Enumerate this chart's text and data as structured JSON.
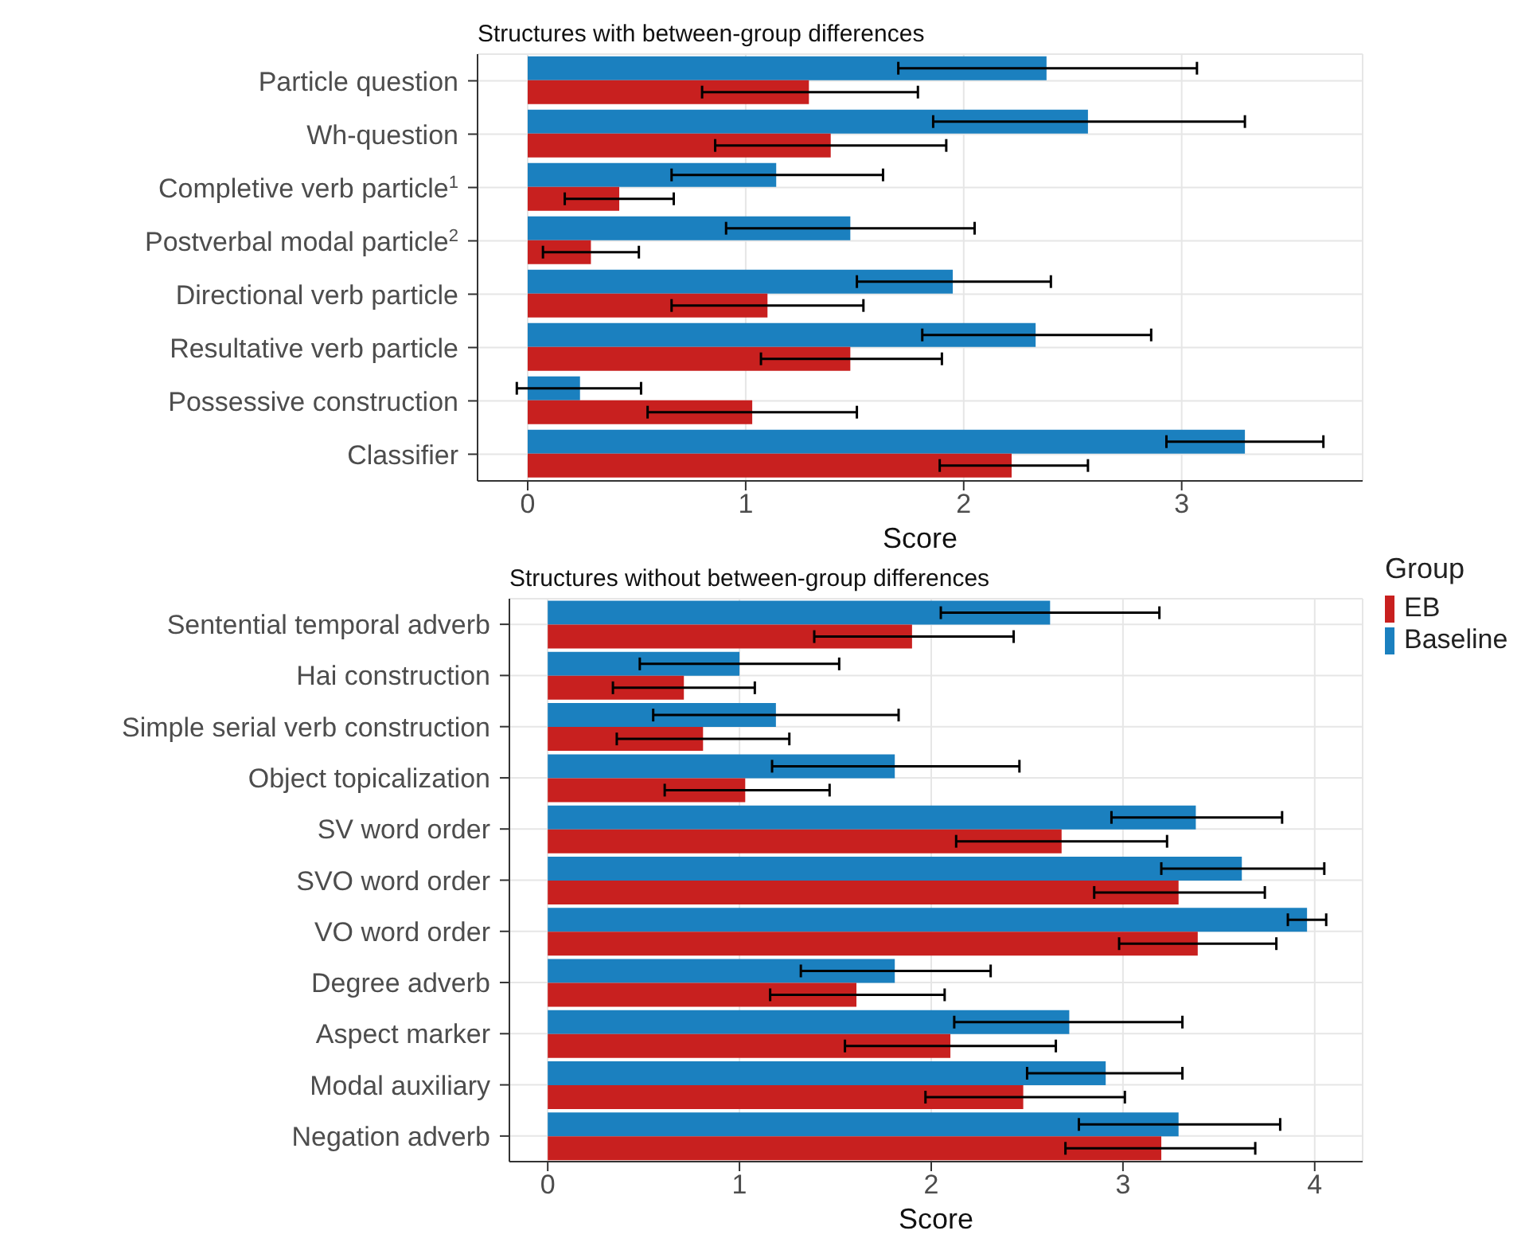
{
  "chart_data": [
    {
      "type": "bar",
      "orientation": "horizontal",
      "title": "Structures with between-group differences",
      "xlabel": "Score",
      "legend_title": "Group",
      "legend": "bottom right",
      "grid": true,
      "categories": [
        "Particle question",
        "Wh-question",
        "Completive verb particle$^{1}$",
        "Postverbal modal particle$^{2}$",
        "Directional verb particle",
        "Resultative verb particle",
        "Possessive construction",
        "Classifier"
      ],
      "xlim": [
        -0.23,
        3.83
      ],
      "xticks": [
        0,
        1,
        2,
        3
      ],
      "series": [
        {
          "name": "EB",
          "color": "#c8201f",
          "values": [
            1.29,
            1.39,
            0.42,
            0.29,
            1.1,
            1.48,
            1.03,
            2.22
          ],
          "errors": [
            [
              0.8,
              1.79
            ],
            [
              0.86,
              1.92
            ],
            [
              0.17,
              0.67
            ],
            [
              0.07,
              0.51
            ],
            [
              0.66,
              1.54
            ],
            [
              1.07,
              1.9
            ],
            [
              0.55,
              1.51
            ],
            [
              1.89,
              2.57
            ]
          ]
        },
        {
          "name": "Baseline",
          "color": "#1b80bf",
          "values": [
            2.38,
            2.57,
            1.14,
            1.48,
            1.95,
            2.33,
            0.24,
            3.29
          ],
          "errors": [
            [
              1.7,
              3.07
            ],
            [
              1.86,
              3.29
            ],
            [
              0.66,
              1.63
            ],
            [
              0.91,
              2.05
            ],
            [
              1.51,
              2.4
            ],
            [
              1.81,
              2.86
            ],
            [
              -0.05,
              0.52
            ],
            [
              2.93,
              3.65
            ]
          ]
        }
      ]
    },
    {
      "type": "bar",
      "orientation": "horizontal",
      "title": "Structures without between-group differences",
      "xlabel": "Score",
      "grid": true,
      "categories": [
        "Sentential temporal adverb",
        "Hai construction",
        "Simple serial verb construction",
        "Object topicalization",
        "SV word order",
        "SVO word order",
        "VO word order",
        "Degree adverb",
        "Aspect marker",
        "Modal auxiliary",
        "Negation adverb"
      ],
      "xlim": [
        -0.2,
        4.25
      ],
      "xticks": [
        0,
        1,
        2,
        3,
        4
      ],
      "series": [
        {
          "color": "#c8201f",
          "values": [
            1.9,
            0.71,
            0.81,
            1.03,
            2.68,
            3.29,
            3.39,
            1.61,
            2.1,
            2.48,
            3.2
          ],
          "errors": [
            [
              1.39,
              2.43
            ],
            [
              0.34,
              1.08
            ],
            [
              0.36,
              1.26
            ],
            [
              0.61,
              1.47
            ],
            [
              2.13,
              3.23
            ],
            [
              2.85,
              3.74
            ],
            [
              2.98,
              3.8
            ],
            [
              1.16,
              2.07
            ],
            [
              1.55,
              2.65
            ],
            [
              1.97,
              3.01
            ],
            [
              2.7,
              3.69
            ]
          ]
        },
        {
          "color": "#1b80bf",
          "values": [
            2.62,
            1.0,
            1.19,
            1.81,
            3.38,
            3.62,
            3.96,
            1.81,
            2.72,
            2.91,
            3.29
          ],
          "errors": [
            [
              2.05,
              3.19
            ],
            [
              0.48,
              1.52
            ],
            [
              0.55,
              1.83
            ],
            [
              1.17,
              2.46
            ],
            [
              2.94,
              3.83
            ],
            [
              3.2,
              4.05
            ],
            [
              3.86,
              4.06
            ],
            [
              1.32,
              2.31
            ],
            [
              2.12,
              3.31
            ],
            [
              2.5,
              3.31
            ],
            [
              2.77,
              3.82
            ]
          ]
        }
      ]
    }
  ]
}
